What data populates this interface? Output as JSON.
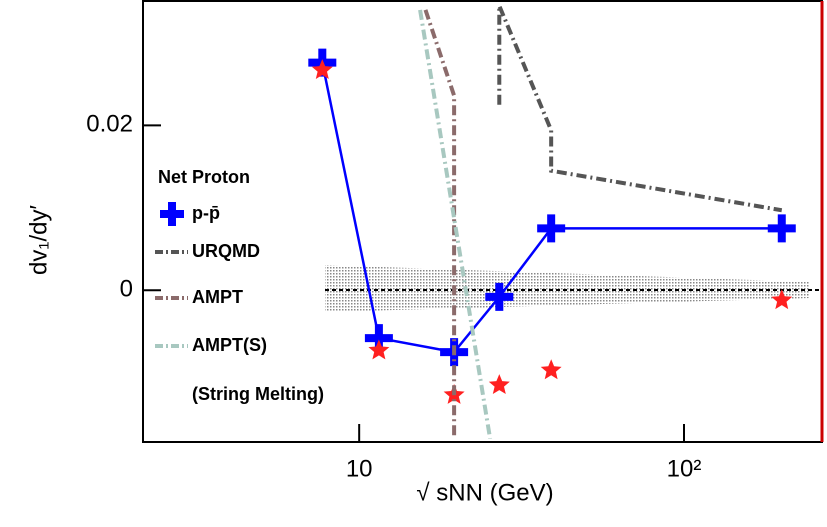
{
  "chart_data": {
    "type": "line",
    "log_x": true,
    "x_label": "√ sNN (GeV)",
    "y_label": "dv₁/dy′",
    "legend_title": "Net Proton",
    "legend_note": "(String Melting)",
    "xlim": [
      2.16,
      266
    ],
    "ylim": [
      -0.0184,
      0.0352
    ],
    "xticks": [
      10,
      {
        "value": 100,
        "label": "10²"
      }
    ],
    "yticks": [
      0,
      0.02
    ],
    "series": [
      {
        "name": "p-p̄",
        "color": "#0000ff",
        "style": "cross-line",
        "x": [
          7.7,
          11.5,
          19.6,
          27,
          39,
          200
        ],
        "values": [
          0.0276,
          -0.0058,
          -0.0075,
          -0.0008,
          0.0075,
          0.0075
        ]
      },
      {
        "color": "#ff2020",
        "style": "star",
        "x": [
          7.7,
          11.5,
          19.6,
          27,
          39,
          200
        ],
        "values": [
          0.0267,
          -0.0073,
          -0.0127,
          -0.0115,
          -0.0097,
          -0.0012
        ]
      },
      {
        "name": "URQMD",
        "color": "#555555",
        "style": "dash-dot",
        "x": [
          27,
          27,
          39,
          39,
          200
        ],
        "values": [
          0.0225,
          0.0345,
          0.0194,
          0.0145,
          0.0097
        ]
      },
      {
        "name": "AMPT",
        "color": "#8b6b6b",
        "style": "dash-dot",
        "x": [
          16,
          19.6,
          19.6
        ],
        "values": [
          0.034,
          0.0236,
          -0.018
        ]
      },
      {
        "name": "AMPT(S)",
        "color": "#a8c8c0",
        "style": "dash-dot",
        "x": [
          15.4,
          25.3
        ],
        "values": [
          0.034,
          -0.018
        ]
      }
    ]
  }
}
